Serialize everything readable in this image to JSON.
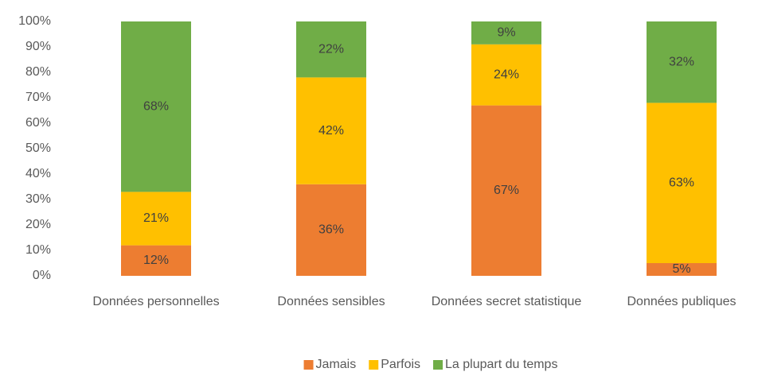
{
  "chart_data": {
    "type": "stacked_bar",
    "categories": [
      "Données personnelles",
      "Données sensibles",
      "Données secret statistique",
      "Données publiques"
    ],
    "series": [
      {
        "name": "Jamais",
        "color": "#ed7d31",
        "values": [
          12,
          36,
          67,
          5
        ],
        "value_labels": [
          "12%",
          "36%",
          "67%",
          "5%"
        ]
      },
      {
        "name": "Parfois",
        "color": "#ffc000",
        "values": [
          21,
          42,
          24,
          63
        ],
        "value_labels": [
          "21%",
          "42%",
          "24%",
          "63%"
        ]
      },
      {
        "name": "La plupart du temps",
        "color": "#70ad47",
        "values": [
          68,
          22,
          9,
          32
        ],
        "value_labels": [
          "68%",
          "22%",
          "9%",
          "32%"
        ]
      }
    ],
    "ylim": [
      0,
      100
    ],
    "yticks": [
      {
        "value": 0,
        "label": "0%"
      },
      {
        "value": 10,
        "label": "10%"
      },
      {
        "value": 20,
        "label": "20%"
      },
      {
        "value": 30,
        "label": "30%"
      },
      {
        "value": 40,
        "label": "40%"
      },
      {
        "value": 50,
        "label": "50%"
      },
      {
        "value": 60,
        "label": "60%"
      },
      {
        "value": 70,
        "label": "70%"
      },
      {
        "value": 80,
        "label": "80%"
      },
      {
        "value": 90,
        "label": "90%"
      },
      {
        "value": 100,
        "label": "100%"
      }
    ],
    "grid": false,
    "legend": "bottom"
  }
}
